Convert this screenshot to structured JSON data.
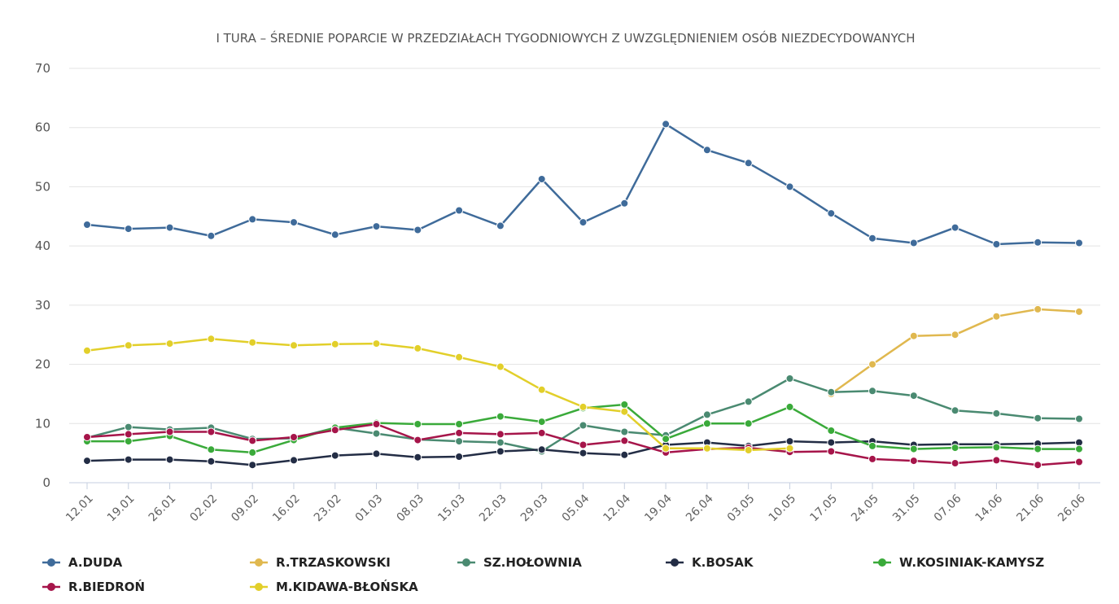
{
  "chart_data": {
    "type": "line",
    "title": "I TURA – ŚREDNIE POPARCIE W PRZEDZIAŁACH TYGODNIOWYCH Z UWZGLĘDNIENIEM OSÓB NIEZDECYDOWANYCH",
    "xlabel": "",
    "ylabel": "",
    "ylim": [
      0,
      70
    ],
    "yticks": [
      "0",
      "10",
      "20",
      "30",
      "40",
      "50",
      "60",
      "70"
    ],
    "grid": true,
    "legend_position": "bottom",
    "x": [
      "12.01",
      "19.01",
      "26.01",
      "02.02",
      "09.02",
      "16.02",
      "23.02",
      "01.03",
      "08.03",
      "15.03",
      "22.03",
      "29.03",
      "05.04",
      "12.04",
      "19.04",
      "26.04",
      "03.05",
      "10.05",
      "17.05",
      "24.05",
      "31.05",
      "07.06",
      "14.06",
      "21.06",
      "26.06"
    ],
    "series": [
      {
        "name": "A.DUDA",
        "color": "#3f6b9a",
        "values": [
          43.6,
          42.9,
          43.1,
          41.7,
          44.5,
          44.0,
          41.9,
          43.3,
          42.7,
          46.0,
          43.4,
          51.3,
          44.0,
          47.2,
          60.6,
          56.2,
          54.0,
          50.0,
          45.5,
          41.3,
          40.5,
          43.1,
          40.3,
          40.6,
          40.5
        ]
      },
      {
        "name": "R.TRZASKOWSKI",
        "color": "#e0b84f",
        "values": [
          null,
          null,
          null,
          null,
          null,
          null,
          null,
          null,
          null,
          null,
          null,
          null,
          null,
          null,
          null,
          null,
          null,
          null,
          15.0,
          20.0,
          24.8,
          25.0,
          28.1,
          29.3,
          28.9
        ]
      },
      {
        "name": "SZ.HOŁOWNIA",
        "color": "#4a8a71",
        "values": [
          7.6,
          9.4,
          9.0,
          9.3,
          7.4,
          7.5,
          9.3,
          8.3,
          7.3,
          7.0,
          6.8,
          5.3,
          9.7,
          8.6,
          8.0,
          11.5,
          13.7,
          17.6,
          15.3,
          15.5,
          14.7,
          12.2,
          11.7,
          10.9,
          10.8
        ]
      },
      {
        "name": "K.BOSAK",
        "color": "#232d45",
        "values": [
          3.7,
          3.9,
          3.9,
          3.6,
          3.0,
          3.8,
          4.6,
          4.9,
          4.3,
          4.4,
          5.3,
          5.6,
          5.0,
          4.7,
          6.4,
          6.8,
          6.2,
          7.0,
          6.8,
          7.0,
          6.4,
          6.5,
          6.5,
          6.6,
          6.8
        ]
      },
      {
        "name": "W.KOSINIAK-KAMYSZ",
        "color": "#3aaa3a",
        "values": [
          7.0,
          7.0,
          7.9,
          5.6,
          5.1,
          7.2,
          9.3,
          10.1,
          9.9,
          9.9,
          11.2,
          10.3,
          12.6,
          13.2,
          7.4,
          10.0,
          10.0,
          12.8,
          8.8,
          6.2,
          5.7,
          5.9,
          6.0,
          5.7,
          5.7
        ]
      },
      {
        "name": "R.BIEDROŃ",
        "color": "#a6154a",
        "values": [
          7.7,
          8.2,
          8.6,
          8.6,
          7.1,
          7.7,
          8.9,
          9.9,
          7.2,
          8.4,
          8.2,
          8.4,
          6.4,
          7.1,
          5.1,
          5.7,
          5.9,
          5.2,
          5.3,
          4.0,
          3.7,
          3.3,
          3.8,
          3.0,
          3.5
        ]
      },
      {
        "name": "M.KIDAWA-BŁOŃSKA",
        "color": "#e2cf2a",
        "values": [
          22.3,
          23.2,
          23.5,
          24.3,
          23.7,
          23.2,
          23.4,
          23.5,
          22.7,
          21.2,
          19.6,
          15.7,
          12.8,
          12.0,
          5.8,
          5.8,
          5.5,
          5.8,
          null,
          null,
          null,
          null,
          null,
          null,
          null
        ]
      }
    ]
  }
}
